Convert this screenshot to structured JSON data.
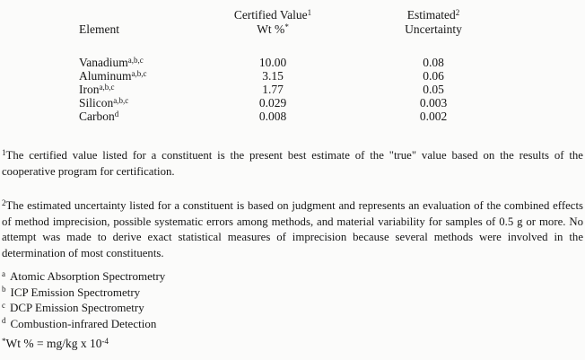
{
  "table": {
    "headers": {
      "element": "Element",
      "certified_value": "Certified Value",
      "certified_value_sup": "1",
      "wt_pct": "Wt %",
      "wt_pct_sup": "*",
      "estimated": "Estimated",
      "estimated_sup": "2",
      "uncertainty": "Uncertainty"
    },
    "rows": [
      {
        "element": "Vanadium",
        "element_sup": "a,b,c",
        "certified_value": "10.00",
        "uncertainty": "0.08"
      },
      {
        "element": "Aluminum",
        "element_sup": "a,b,c",
        "certified_value": "3.15",
        "uncertainty": "0.06"
      },
      {
        "element": "Iron",
        "element_sup": "a,b,c",
        "certified_value": "1.77",
        "uncertainty": "0.05"
      },
      {
        "element": "Silicon",
        "element_sup": "a,b,c",
        "certified_value": "0.029",
        "uncertainty": "0.003"
      },
      {
        "element": "Carbon",
        "element_sup": "d",
        "certified_value": "0.008",
        "uncertainty": "0.002"
      }
    ]
  },
  "footnotes": {
    "fn1_sup": "1",
    "fn1_text": "The certified value listed for a constituent is the present best estimate of the \"true\" value based on the results of the cooperative program for certification.",
    "fn2_sup": "2",
    "fn2_text": "The estimated uncertainty listed for a constituent is based on judgment and represents an evaluation of the combined effects of method imprecision, possible systematic errors among methods, and material variability for samples of 0.5 g or more.  No attempt was made to derive exact statistical measures of imprecision because several methods were involved in the determination of most constituents."
  },
  "methods": [
    {
      "sup": "a",
      "label": "Atomic Absorption Spectrometry"
    },
    {
      "sup": "b",
      "label": "ICP Emission Spectrometry"
    },
    {
      "sup": "c",
      "label": "DCP Emission Spectrometry"
    },
    {
      "sup": "d",
      "label": "Combustion-infrared Detection"
    }
  ],
  "wt_note": {
    "sup": "*",
    "pre": "Wt % = mg/kg x 10",
    "exp": "-4"
  }
}
